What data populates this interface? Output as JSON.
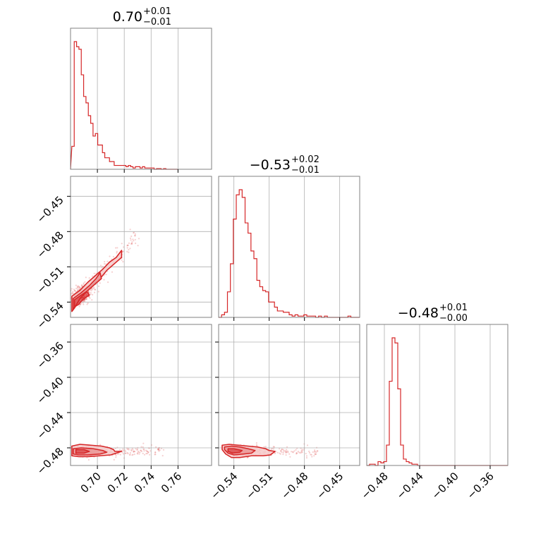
{
  "colors": {
    "accent": "#d62728",
    "fill_light": "#f6caca",
    "fill_mid": "#eb9a9a",
    "grid": "#b0b0b0",
    "frame": "#808080"
  },
  "chart_data": {
    "type": "corner",
    "parameters": [
      {
        "title": {
          "value": "0.70",
          "plus": "+0.01",
          "minus": "−0.01"
        },
        "range": [
          0.68,
          0.785
        ],
        "ticks": [
          0.7,
          0.72,
          0.74,
          0.76
        ],
        "tick_labels": [
          "0.70",
          "0.72",
          "0.74",
          "0.76"
        ],
        "histogram": {
          "bin_start": 0.681,
          "bin_width": 0.00175,
          "counts": [
            0.18,
            1.0,
            0.96,
            0.94,
            0.74,
            0.57,
            0.52,
            0.42,
            0.36,
            0.26,
            0.28,
            0.19,
            0.19,
            0.13,
            0.09,
            0.09,
            0.06,
            0.06,
            0.03,
            0.03,
            0.03,
            0.03,
            0.03,
            0.02,
            0.03,
            0.02,
            0.01,
            0.02,
            0.02,
            0.01,
            0.02,
            0.01,
            0.01,
            0.01,
            0.01,
            0.0,
            0.005,
            0.005,
            0.0,
            0.005,
            0.0,
            0.0,
            0.0,
            0.0,
            0.0
          ]
        }
      },
      {
        "title": {
          "value": "−0.53",
          "plus": "+0.02",
          "minus": "−0.01"
        },
        "range": [
          -0.553,
          -0.433
        ],
        "ticks": [
          -0.54,
          -0.51,
          -0.48,
          -0.45
        ],
        "tick_labels": [
          "−0.54",
          "−0.51",
          "−0.48",
          "−0.45"
        ],
        "histogram": {
          "bin_start": -0.553,
          "bin_width": 0.0025,
          "counts": [
            0.0,
            0.02,
            0.04,
            0.2,
            0.42,
            0.77,
            0.96,
            1.0,
            0.94,
            0.74,
            0.66,
            0.52,
            0.46,
            0.29,
            0.24,
            0.21,
            0.2,
            0.12,
            0.12,
            0.08,
            0.05,
            0.05,
            0.04,
            0.04,
            0.02,
            0.01,
            0.02,
            0.01,
            0.01,
            0.02,
            0.01,
            0.01,
            0.01,
            0.0,
            0.01,
            0.0,
            0.01,
            0.0,
            0.0,
            0.0,
            0.0,
            0.0,
            0.0,
            0.0,
            0.01,
            0.0,
            0.0,
            0.0
          ]
        }
      },
      {
        "title": {
          "value": "−0.48",
          "plus": "+0.01",
          "minus": "−0.00"
        },
        "range": [
          -0.5,
          -0.34
        ],
        "ticks": [
          -0.48,
          -0.44,
          -0.4,
          -0.36
        ],
        "tick_labels": [
          "−0.48",
          "−0.44",
          "−0.40",
          "−0.36"
        ],
        "histogram": {
          "bin_start": -0.5,
          "bin_width": 0.0032,
          "counts": [
            0.0,
            0.01,
            0.01,
            0.0,
            0.03,
            0.02,
            0.03,
            0.16,
            0.66,
            1.0,
            0.96,
            0.6,
            0.16,
            0.05,
            0.03,
            0.02,
            0.01,
            0.01,
            0.0,
            0.0,
            0.0,
            0.0,
            0.0,
            0.0,
            0.0,
            0.0,
            0.0,
            0.0,
            0.0,
            0.0,
            0.0,
            0.0,
            0.0,
            0.0,
            0.0,
            0.0,
            0.0,
            0.0,
            0.0,
            0.0,
            0.0,
            0.0,
            0.0,
            0.0,
            0.0,
            0.0,
            0.0,
            0.0,
            0.0,
            0.0
          ]
        }
      }
    ],
    "pairs": [
      {
        "x_param": 0,
        "y_param": 1,
        "contour_outer": [
          [
            0.681,
            -0.548
          ],
          [
            0.681,
            -0.535
          ],
          [
            0.687,
            -0.53
          ],
          [
            0.693,
            -0.523
          ],
          [
            0.699,
            -0.517
          ],
          [
            0.704,
            -0.512
          ],
          [
            0.709,
            -0.506
          ],
          [
            0.714,
            -0.502
          ],
          [
            0.718,
            -0.496
          ],
          [
            0.718,
            -0.502
          ],
          [
            0.713,
            -0.507
          ],
          [
            0.707,
            -0.513
          ],
          [
            0.702,
            -0.52
          ],
          [
            0.696,
            -0.526
          ],
          [
            0.691,
            -0.531
          ],
          [
            0.687,
            -0.537
          ],
          [
            0.683,
            -0.545
          ],
          [
            0.681,
            -0.548
          ]
        ],
        "contour_inner": [
          [
            0.682,
            -0.546
          ],
          [
            0.682,
            -0.537
          ],
          [
            0.688,
            -0.532
          ],
          [
            0.694,
            -0.526
          ],
          [
            0.699,
            -0.52
          ],
          [
            0.702,
            -0.515
          ],
          [
            0.703,
            -0.52
          ],
          [
            0.698,
            -0.525
          ],
          [
            0.692,
            -0.531
          ],
          [
            0.687,
            -0.537
          ],
          [
            0.684,
            -0.543
          ],
          [
            0.682,
            -0.546
          ]
        ],
        "contour_core": [
          [
            0.683,
            -0.544
          ],
          [
            0.683,
            -0.538
          ],
          [
            0.688,
            -0.534
          ],
          [
            0.692,
            -0.531
          ],
          [
            0.694,
            -0.534
          ],
          [
            0.689,
            -0.538
          ],
          [
            0.686,
            -0.542
          ],
          [
            0.683,
            -0.544
          ]
        ],
        "scatter_core": [
          0.686,
          -0.537
        ],
        "scatter_direction": [
          0.045,
          0.055
        ]
      },
      {
        "x_param": 0,
        "y_param": 2,
        "contour_outer": [
          [
            0.681,
            -0.489
          ],
          [
            0.681,
            -0.478
          ],
          [
            0.687,
            -0.476
          ],
          [
            0.695,
            -0.477
          ],
          [
            0.703,
            -0.478
          ],
          [
            0.709,
            -0.48
          ],
          [
            0.712,
            -0.482
          ],
          [
            0.713,
            -0.484
          ],
          [
            0.718,
            -0.484
          ],
          [
            0.714,
            -0.486
          ],
          [
            0.71,
            -0.488
          ],
          [
            0.702,
            -0.489
          ],
          [
            0.693,
            -0.49
          ],
          [
            0.686,
            -0.49
          ],
          [
            0.681,
            -0.489
          ]
        ],
        "contour_inner": [
          [
            0.682,
            -0.487
          ],
          [
            0.682,
            -0.481
          ],
          [
            0.688,
            -0.48
          ],
          [
            0.697,
            -0.481
          ],
          [
            0.704,
            -0.483
          ],
          [
            0.707,
            -0.485
          ],
          [
            0.702,
            -0.487
          ],
          [
            0.693,
            -0.488
          ],
          [
            0.686,
            -0.488
          ],
          [
            0.682,
            -0.487
          ]
        ],
        "contour_core": [
          [
            0.684,
            -0.486
          ],
          [
            0.684,
            -0.482
          ],
          [
            0.69,
            -0.482
          ],
          [
            0.694,
            -0.484
          ],
          [
            0.69,
            -0.486
          ],
          [
            0.684,
            -0.486
          ]
        ],
        "scatter_core": [
          0.688,
          -0.484
        ],
        "scatter_direction": [
          0.06,
          0.0
        ]
      },
      {
        "x_param": 1,
        "y_param": 2,
        "contour_outer": [
          [
            -0.55,
            -0.477
          ],
          [
            -0.544,
            -0.476
          ],
          [
            -0.536,
            -0.477
          ],
          [
            -0.528,
            -0.478
          ],
          [
            -0.52,
            -0.479
          ],
          [
            -0.513,
            -0.481
          ],
          [
            -0.51,
            -0.483
          ],
          [
            -0.505,
            -0.484
          ],
          [
            -0.509,
            -0.488
          ],
          [
            -0.515,
            -0.489
          ],
          [
            -0.525,
            -0.489
          ],
          [
            -0.535,
            -0.491
          ],
          [
            -0.542,
            -0.491
          ],
          [
            -0.547,
            -0.487
          ],
          [
            -0.55,
            -0.482
          ],
          [
            -0.55,
            -0.477
          ]
        ],
        "contour_inner": [
          [
            -0.548,
            -0.479
          ],
          [
            -0.542,
            -0.478
          ],
          [
            -0.535,
            -0.479
          ],
          [
            -0.528,
            -0.481
          ],
          [
            -0.522,
            -0.483
          ],
          [
            -0.525,
            -0.486
          ],
          [
            -0.532,
            -0.487
          ],
          [
            -0.54,
            -0.488
          ],
          [
            -0.545,
            -0.486
          ],
          [
            -0.548,
            -0.482
          ],
          [
            -0.548,
            -0.479
          ]
        ],
        "contour_core": [
          [
            -0.545,
            -0.481
          ],
          [
            -0.54,
            -0.481
          ],
          [
            -0.533,
            -0.483
          ],
          [
            -0.535,
            -0.485
          ],
          [
            -0.541,
            -0.486
          ],
          [
            -0.545,
            -0.484
          ],
          [
            -0.545,
            -0.481
          ]
        ],
        "scatter_core": [
          -0.538,
          -0.484
        ],
        "scatter_direction": [
          0.07,
          0.0
        ]
      }
    ],
    "grid": true
  }
}
